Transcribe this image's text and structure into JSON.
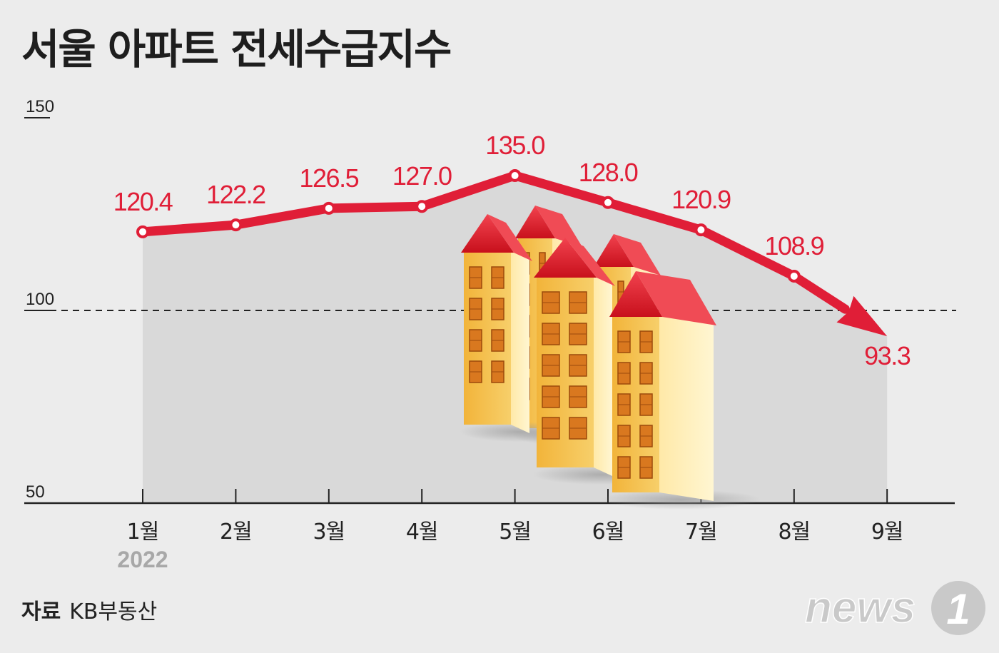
{
  "header": {
    "title": "서울 아파트 전세수급지수"
  },
  "chart_data": {
    "type": "line",
    "title": "서울 아파트 전세수급지수",
    "categories": [
      "1월",
      "2월",
      "3월",
      "4월",
      "5월",
      "6월",
      "7월",
      "8월",
      "9월"
    ],
    "year_label": "2022",
    "values": [
      120.4,
      122.2,
      126.5,
      127.0,
      135.0,
      128.0,
      120.9,
      108.9,
      93.3
    ],
    "value_labels": [
      "120.4",
      "122.2",
      "126.5",
      "127.0",
      "135.0",
      "128.0",
      "120.9",
      "108.9",
      "93.3"
    ],
    "y_ticks": [
      "150",
      "100",
      "50"
    ],
    "ylim": [
      50,
      150
    ],
    "reference_line": 100,
    "xlabel": "",
    "ylabel": "",
    "line_color": "#e01e37",
    "area_color": "#d9d9d9",
    "grid": false
  },
  "source": {
    "label": "자료",
    "name": "KB부동산"
  },
  "logo": {
    "text": "news",
    "mark": "1"
  }
}
